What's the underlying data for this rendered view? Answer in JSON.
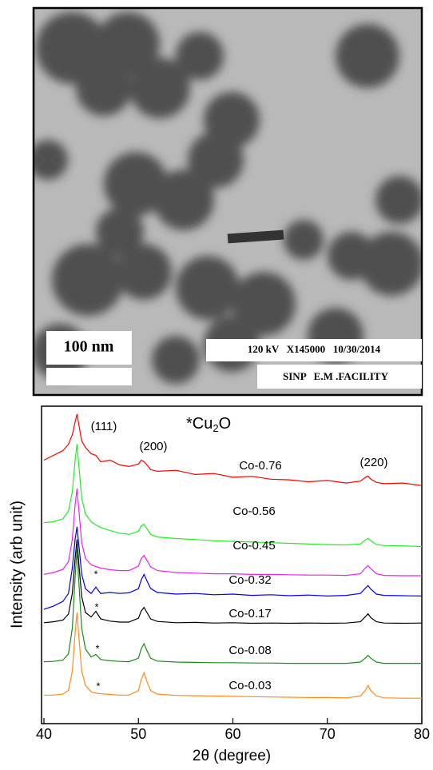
{
  "image": {
    "scale_label": "100 nm",
    "info": "120 kV   X145000   10/30/2014",
    "facility": "SINP   E.M .FACILITY"
  },
  "chart_data": {
    "type": "line",
    "xlabel": "2θ (degree)",
    "ylabel": "Intensity (arb unit)",
    "annotations": [
      "(111)",
      "(200)",
      "(220)",
      "*",
      "*",
      "*",
      "*"
    ],
    "phase_label": {
      "text": "*Cu",
      "sub": "2",
      "tail": "O"
    },
    "xlim": [
      40,
      80
    ],
    "xticks": [
      40,
      50,
      60,
      70,
      80
    ],
    "ylim": [
      0,
      100
    ],
    "x": [
      40,
      41,
      42,
      42.6,
      43.0,
      43.3,
      43.5,
      43.7,
      44.0,
      44.4,
      45.0,
      45.5,
      46.0,
      47,
      48,
      49,
      50,
      50.3,
      50.6,
      50.9,
      51.3,
      52,
      54,
      56,
      58,
      60,
      62,
      64,
      66,
      68,
      70,
      72,
      73.5,
      74.0,
      74.3,
      74.6,
      75.2,
      76,
      78,
      80
    ],
    "series": [
      {
        "name": "Co-0.76",
        "color": "#ff0000",
        "values": [
          83,
          84.5,
          86,
          88,
          91,
          95,
          97.5,
          94,
          89,
          87,
          85,
          84.5,
          82.5,
          83,
          81.5,
          81,
          81.8,
          83,
          82.5,
          81.5,
          80,
          79.5,
          79.8,
          78.5,
          78.8,
          77.6,
          77.9,
          77,
          76.8,
          76.2,
          76.6,
          75.8,
          76.4,
          77.5,
          78,
          77,
          76,
          75.6,
          75.8,
          75
        ]
      },
      {
        "name": "Co-0.56",
        "color": "#22ee22",
        "values": [
          63.3,
          63.6,
          64.5,
          67,
          73,
          83,
          88,
          81,
          71,
          66,
          63.6,
          62.6,
          61.8,
          60.8,
          60,
          59.6,
          60.6,
          62.3,
          62.8,
          61.4,
          59.6,
          58.8,
          58.3,
          58,
          57.6,
          57.4,
          57.2,
          57,
          56.8,
          56.6,
          56.4,
          56.3,
          56.6,
          57.8,
          58.4,
          57.6,
          56.4,
          56.1,
          56,
          55.8
        ]
      },
      {
        "name": "Co-0.45",
        "color": "#ee22ee",
        "values": [
          47,
          47.6,
          48.6,
          51,
          58,
          69,
          74,
          67,
          57,
          52,
          50,
          49.5,
          49,
          48.5,
          48.2,
          48.2,
          49.6,
          52,
          53,
          51.4,
          49.4,
          48.2,
          47.6,
          47.4,
          47.2,
          47.2,
          47,
          47,
          46.9,
          46.8,
          46.8,
          46.7,
          47.2,
          49,
          49.8,
          48.8,
          47.2,
          46.7,
          46.6,
          46.6
        ]
      },
      {
        "name": "Co-0.32",
        "color": "#0000ee",
        "values": [
          36,
          37,
          38.5,
          41,
          49,
          58,
          62,
          56,
          47,
          42.5,
          41,
          43,
          41,
          41.3,
          41,
          41.2,
          42.5,
          45.3,
          47,
          45,
          42.6,
          41.3,
          40.8,
          41,
          40.6,
          40.8,
          40.4,
          40.6,
          40.3,
          40.5,
          40.2,
          40.4,
          41,
          42.6,
          43.5,
          42.4,
          40.8,
          40.4,
          40.3,
          40.2
        ]
      },
      {
        "name": "Co-0.17",
        "color": "#000000",
        "values": [
          31.8,
          32.1,
          32.6,
          34.5,
          41,
          52,
          58,
          50,
          40,
          35,
          33.6,
          35.4,
          33,
          32.3,
          32,
          32,
          33.2,
          35.5,
          36.6,
          35,
          33,
          32.2,
          31.8,
          31.9,
          31.7,
          31.8,
          31.6,
          31.7,
          31.6,
          31.7,
          31.6,
          31.7,
          32.1,
          33.6,
          34.6,
          33.4,
          32.1,
          31.7,
          31.6,
          31.7
        ]
      },
      {
        "name": "Co-0.08",
        "color": "#1a8c1a",
        "values": [
          19.5,
          19.6,
          20,
          22,
          30,
          46,
          55,
          44,
          30,
          23.5,
          21,
          21.8,
          20.2,
          19.8,
          19.6,
          19.5,
          20.6,
          23.6,
          25.2,
          23,
          20.6,
          19.7,
          19.4,
          19.3,
          19.2,
          19.2,
          19.1,
          19.1,
          19,
          19,
          19,
          19,
          19.4,
          20.6,
          21.5,
          20.6,
          19.4,
          19,
          19,
          19
        ]
      },
      {
        "name": "Co-0.03",
        "color": "#ff8c1a",
        "values": [
          9,
          9,
          9.3,
          10.5,
          16.5,
          28.5,
          35,
          27,
          16.5,
          12,
          10,
          9.6,
          9.4,
          9.2,
          9,
          9,
          10.4,
          13.9,
          16,
          13.2,
          10.4,
          9.3,
          8.9,
          8.8,
          8.7,
          8.6,
          8.5,
          8.4,
          8.3,
          8.2,
          8.2,
          8.1,
          8.7,
          10.4,
          12,
          10.4,
          8.7,
          8.1,
          8,
          8
        ]
      }
    ]
  }
}
